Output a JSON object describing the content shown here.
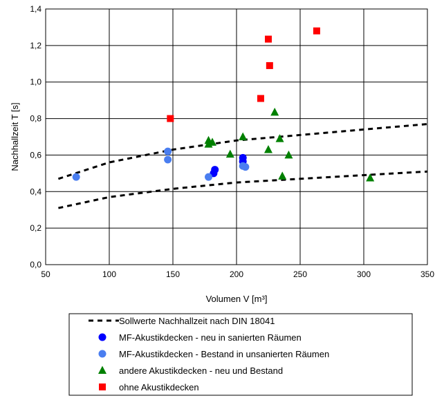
{
  "chart_data": {
    "type": "scatter",
    "xlabel": "Volumen V [m³]",
    "ylabel": "Nachhallzeit T [s]",
    "xlim": [
      50,
      350
    ],
    "ylim": [
      0.0,
      1.4
    ],
    "xticks": [
      50,
      100,
      150,
      200,
      250,
      300,
      350
    ],
    "yticks": [
      0.0,
      0.2,
      0.4,
      0.6,
      0.8,
      1.0,
      1.2,
      1.4
    ],
    "xtick_labels": [
      "50",
      "100",
      "150",
      "200",
      "250",
      "300",
      "350"
    ],
    "ytick_labels": [
      "0,0",
      "0,2",
      "0,4",
      "0,6",
      "0,8",
      "1,0",
      "1,2",
      "1,4"
    ],
    "grid": true,
    "legend_position": "bottom",
    "lines": [
      {
        "name": "Sollwerte Nachhallzeit nach DIN 18041",
        "style": "dashed",
        "color": "#000000",
        "upper": {
          "x": [
            60,
            100,
            150,
            200,
            250,
            300,
            350
          ],
          "y": [
            0.47,
            0.56,
            0.63,
            0.68,
            0.71,
            0.74,
            0.77
          ]
        },
        "lower": {
          "x": [
            60,
            100,
            150,
            200,
            250,
            300,
            350
          ],
          "y": [
            0.31,
            0.37,
            0.415,
            0.45,
            0.47,
            0.49,
            0.51
          ]
        }
      }
    ],
    "series": [
      {
        "name": "MF-Akustikdecken - neu in sanierten Räumen",
        "marker": "circle",
        "color": "#0000ff",
        "points": [
          [
            182,
            0.5
          ],
          [
            183,
            0.52
          ],
          [
            205,
            0.585
          ],
          [
            205,
            0.565
          ]
        ]
      },
      {
        "name": "MF-Akustikdecken - Bestand in unsanierten Räumen",
        "marker": "circle",
        "color": "#4a7ef0",
        "points": [
          [
            74,
            0.48
          ],
          [
            146,
            0.62
          ],
          [
            146,
            0.575
          ],
          [
            178,
            0.48
          ],
          [
            205,
            0.54
          ],
          [
            207,
            0.535
          ]
        ]
      },
      {
        "name": "andere Akustikdecken - neu und Bestand",
        "marker": "triangle",
        "color": "#008000",
        "points": [
          [
            178,
            0.68
          ],
          [
            178,
            0.66
          ],
          [
            181,
            0.67
          ],
          [
            195,
            0.605
          ],
          [
            205,
            0.7
          ],
          [
            225,
            0.63
          ],
          [
            230,
            0.835
          ],
          [
            234,
            0.69
          ],
          [
            236,
            0.485
          ],
          [
            241,
            0.6
          ],
          [
            305,
            0.475
          ]
        ]
      },
      {
        "name": "ohne Akustikdecken",
        "marker": "square",
        "color": "#ff0000",
        "points": [
          [
            148,
            0.8
          ],
          [
            219,
            0.91
          ],
          [
            225,
            1.235
          ],
          [
            226,
            1.09
          ],
          [
            263,
            1.28
          ]
        ]
      }
    ],
    "legend": [
      "Sollwerte Nachhallzeit nach DIN 18041",
      "MF-Akustikdecken - neu in sanierten Räumen",
      "MF-Akustikdecken - Bestand in unsanierten Räumen",
      "andere Akustikdecken - neu und Bestand",
      "ohne Akustikdecken"
    ]
  }
}
